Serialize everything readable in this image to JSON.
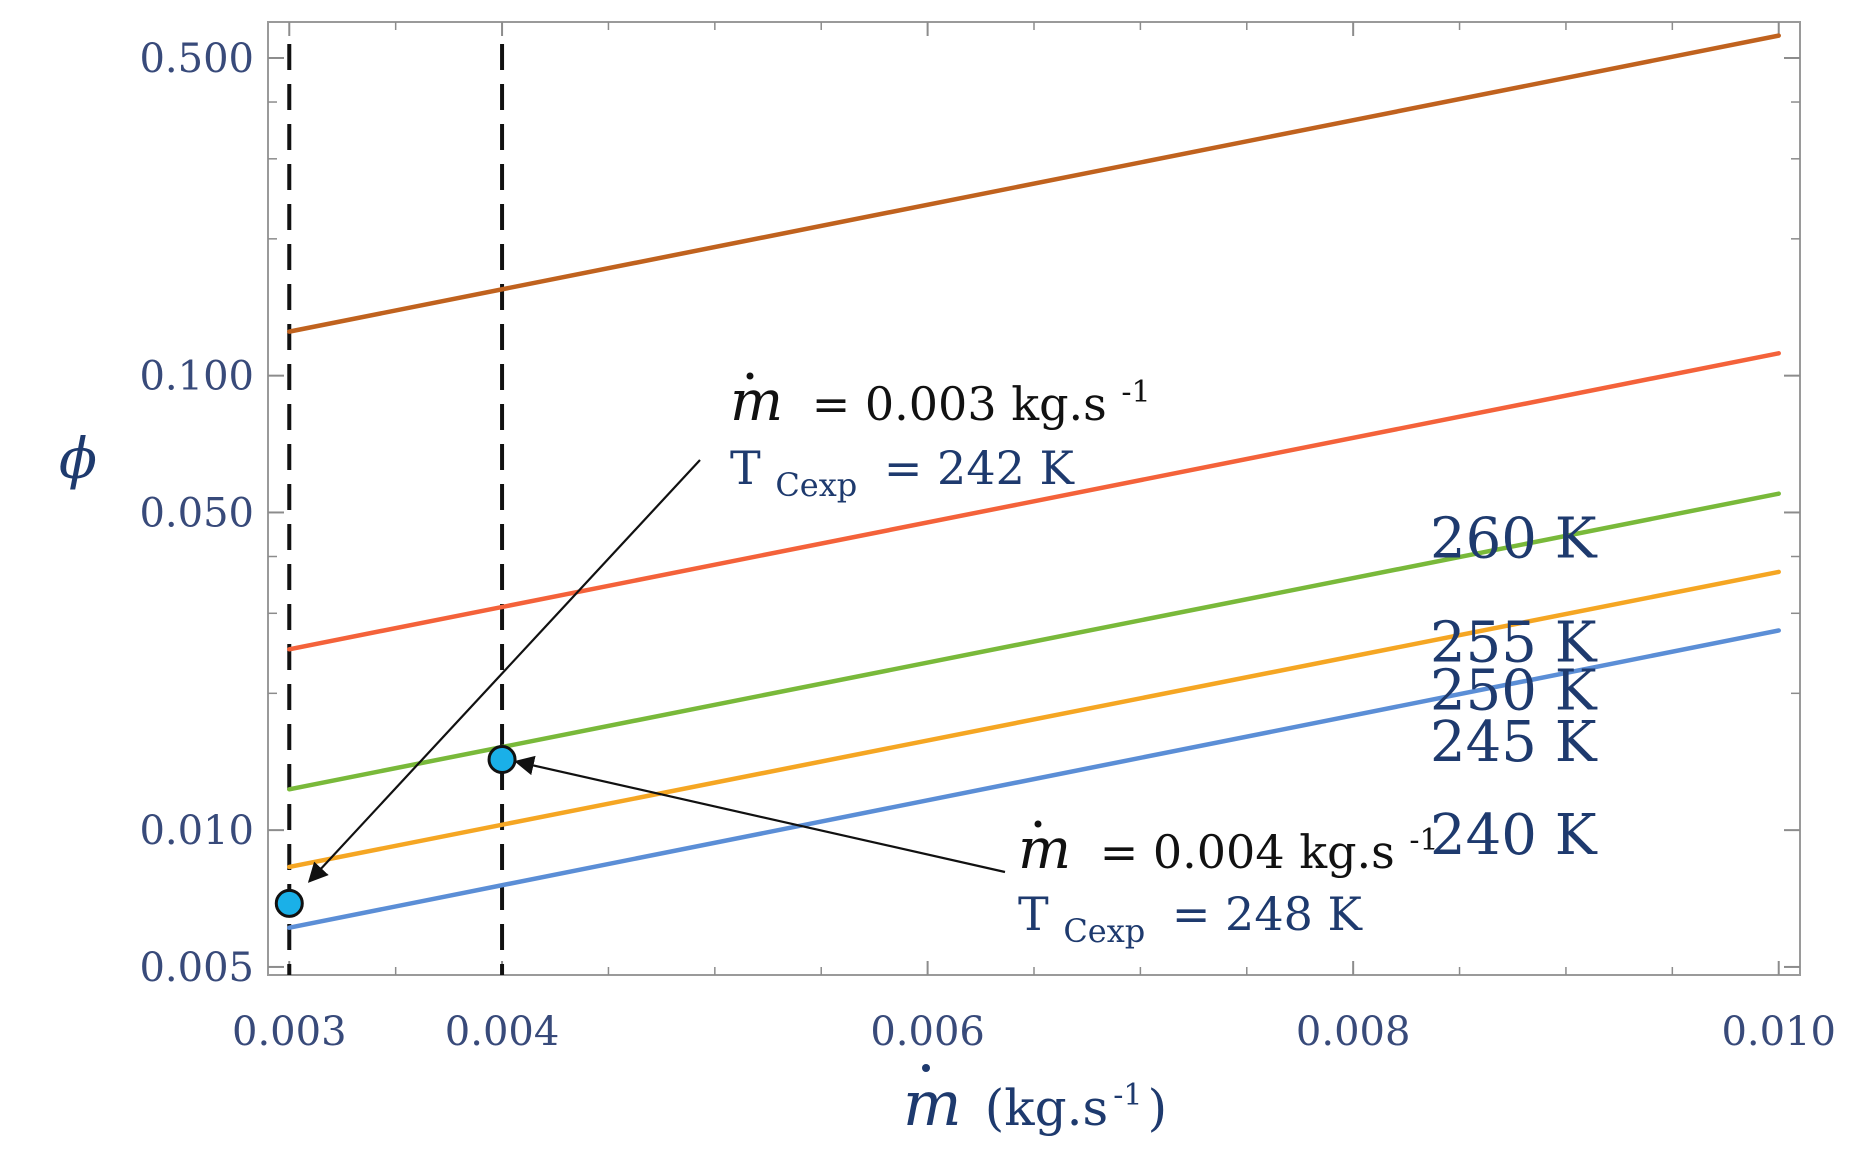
{
  "chart_data": {
    "type": "line",
    "title": "",
    "xlabel": "ṁ (kg.s-1)",
    "xlabel_symbol": "m",
    "xlabel_unit": "(kg.s",
    "xlabel_unit_exp": "-1",
    "xlabel_unit_close": ")",
    "ylabel": "ϕ",
    "xscale": "linear",
    "yscale": "log",
    "xlim": [
      0.0029,
      0.0101
    ],
    "ylim": [
      0.0048,
      0.6
    ],
    "x_ticks": [
      0.003,
      0.004,
      0.006,
      0.008,
      0.01
    ],
    "x_tick_labels": [
      "0.003",
      "0.004",
      "0.006",
      "0.008",
      "0.010"
    ],
    "x_minor_ticks": [
      0.0035,
      0.0045,
      0.005,
      0.0055,
      0.0065,
      0.007,
      0.0075,
      0.0085,
      0.009,
      0.0095
    ],
    "y_ticks": [
      0.005,
      0.01,
      0.05,
      0.1,
      0.5
    ],
    "y_tick_labels": [
      "0.005",
      "0.010",
      "0.050",
      "0.100",
      "0.500"
    ],
    "y_minor_ticks": [
      0.02,
      0.03,
      0.04,
      0.2,
      0.3,
      0.4
    ],
    "grid": false,
    "series": [
      {
        "name": "240 K",
        "color": "#5b8ed6",
        "x": [
          0.003,
          0.01
        ],
        "y": [
          0.0061,
          0.0275
        ]
      },
      {
        "name": "245 K",
        "color": "#f5a623",
        "x": [
          0.003,
          0.01
        ],
        "y": [
          0.0083,
          0.037
        ]
      },
      {
        "name": "250 K",
        "color": "#79b93a",
        "x": [
          0.003,
          0.01
        ],
        "y": [
          0.0123,
          0.055
        ]
      },
      {
        "name": "255 K",
        "color": "#f4623a",
        "x": [
          0.003,
          0.01
        ],
        "y": [
          0.025,
          0.112
        ]
      },
      {
        "name": "260 K",
        "color": "#c0621e",
        "x": [
          0.003,
          0.01
        ],
        "y": [
          0.125,
          0.56
        ]
      }
    ],
    "series_label_values": [
      0.0098,
      0.0157,
      0.0204,
      0.026,
      0.044
    ],
    "dashed_lines_x": [
      0.003,
      0.004
    ],
    "points": [
      {
        "x": 0.003,
        "y": 0.0069,
        "color": "#1ab0e8"
      },
      {
        "x": 0.004,
        "y": 0.0143,
        "color": "#1ab0e8"
      }
    ],
    "annotations": [
      {
        "symbol": "m",
        "equals_text": "= 0.003 kg.s",
        "equals_exp": "-1",
        "t_text": "T",
        "t_sub": "Cexp",
        "t_value": "= 242 K",
        "target": [
          0.003,
          0.0069
        ]
      },
      {
        "symbol": "m",
        "equals_text": "= 0.004 kg.s",
        "equals_exp": "-1",
        "t_text": "T",
        "t_sub": "Cexp",
        "t_value": "= 248 K",
        "target": [
          0.004,
          0.0143
        ]
      }
    ]
  }
}
